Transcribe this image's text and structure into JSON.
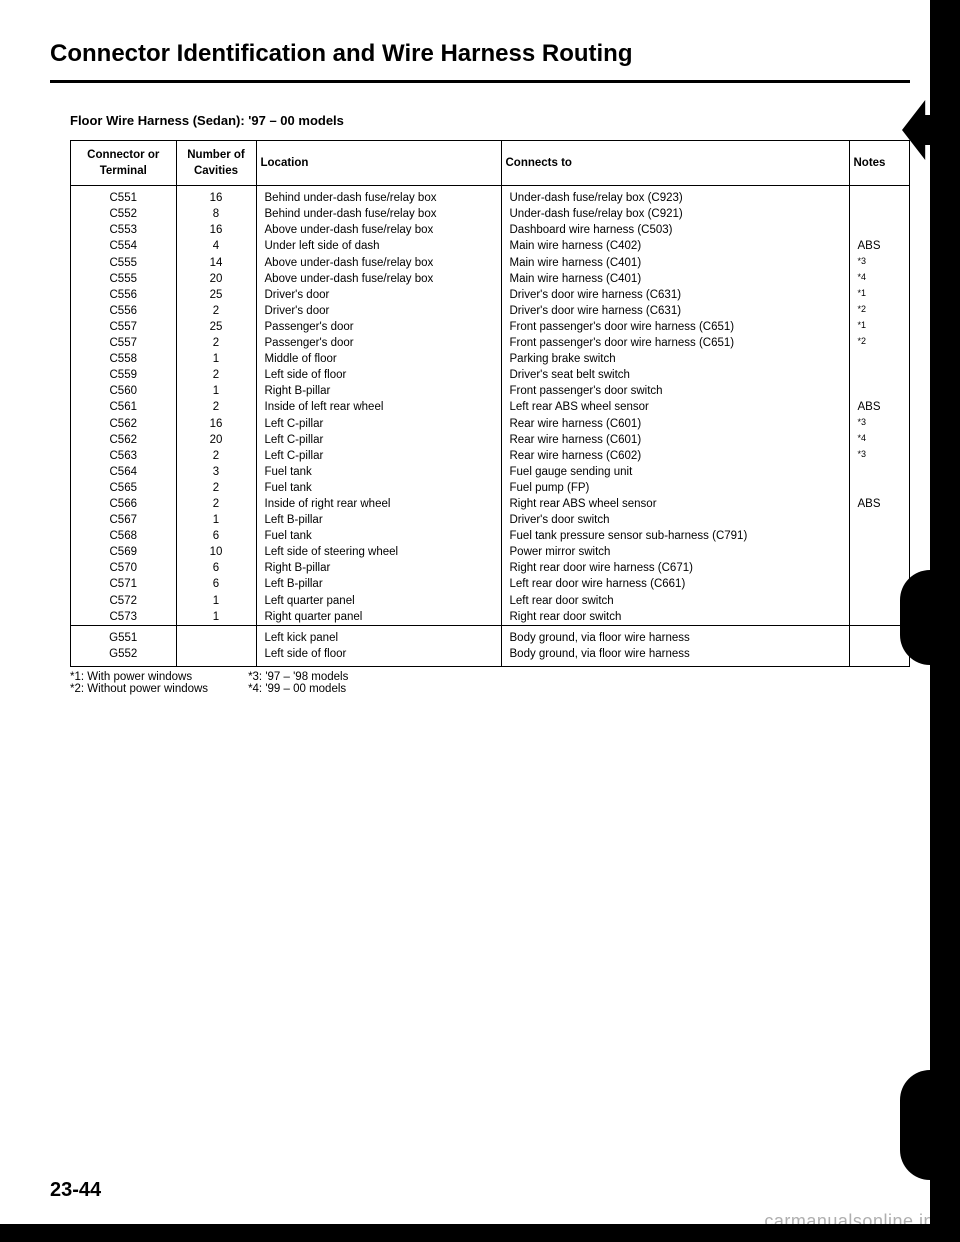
{
  "title": "Connector Identification and Wire Harness Routing",
  "subtitle": "Floor Wire Harness (Sedan): '97 – 00 models",
  "headers": {
    "terminal": "Connector or Terminal",
    "cavities": "Number of Cavities",
    "location": "Location",
    "connects": "Connects to",
    "notes": "Notes"
  },
  "rows_main": [
    {
      "t": "C551",
      "c": "16",
      "l": "Behind under-dash fuse/relay box",
      "x": "Under-dash fuse/relay box (C923)",
      "n": ""
    },
    {
      "t": "C552",
      "c": "8",
      "l": "Behind under-dash fuse/relay box",
      "x": "Under-dash fuse/relay box (C921)",
      "n": ""
    },
    {
      "t": "C553",
      "c": "16",
      "l": "Above under-dash fuse/relay box",
      "x": "Dashboard wire harness (C503)",
      "n": ""
    },
    {
      "t": "C554",
      "c": "4",
      "l": "Under left side of dash",
      "x": "Main wire harness (C402)",
      "n": "ABS"
    },
    {
      "t": "C555",
      "c": "14",
      "l": "Above under-dash fuse/relay box",
      "x": "Main wire harness (C401)",
      "n": "*3"
    },
    {
      "t": "C555",
      "c": "20",
      "l": "Above under-dash fuse/relay box",
      "x": "Main wire harness (C401)",
      "n": "*4"
    },
    {
      "t": "C556",
      "c": "25",
      "l": "Driver's door",
      "x": "Driver's door wire harness (C631)",
      "n": "*1"
    },
    {
      "t": "C556",
      "c": "2",
      "l": "Driver's door",
      "x": "Driver's door wire harness (C631)",
      "n": "*2"
    },
    {
      "t": "C557",
      "c": "25",
      "l": "Passenger's door",
      "x": "Front passenger's door wire harness (C651)",
      "n": "*1"
    },
    {
      "t": "C557",
      "c": "2",
      "l": "Passenger's door",
      "x": "Front passenger's door wire harness (C651)",
      "n": "*2"
    },
    {
      "t": "C558",
      "c": "1",
      "l": "Middle of floor",
      "x": "Parking brake switch",
      "n": ""
    },
    {
      "t": "C559",
      "c": "2",
      "l": "Left side of floor",
      "x": "Driver's seat belt switch",
      "n": ""
    },
    {
      "t": "C560",
      "c": "1",
      "l": "Right B-pillar",
      "x": "Front passenger's door switch",
      "n": ""
    },
    {
      "t": "C561",
      "c": "2",
      "l": "Inside of left rear wheel",
      "x": "Left rear ABS wheel sensor",
      "n": "ABS"
    },
    {
      "t": "C562",
      "c": "16",
      "l": "Left C-pillar",
      "x": "Rear wire harness (C601)",
      "n": "*3"
    },
    {
      "t": "C562",
      "c": "20",
      "l": "Left C-pillar",
      "x": "Rear wire harness (C601)",
      "n": "*4"
    },
    {
      "t": "C563",
      "c": "2",
      "l": "Left C-pillar",
      "x": "Rear wire harness (C602)",
      "n": "*3"
    },
    {
      "t": "C564",
      "c": "3",
      "l": "Fuel tank",
      "x": "Fuel gauge sending unit",
      "n": ""
    },
    {
      "t": "C565",
      "c": "2",
      "l": "Fuel tank",
      "x": "Fuel pump (FP)",
      "n": ""
    },
    {
      "t": "C566",
      "c": "2",
      "l": "Inside of right rear wheel",
      "x": "Right rear ABS wheel sensor",
      "n": "ABS"
    },
    {
      "t": "C567",
      "c": "1",
      "l": "Left B-pillar",
      "x": "Driver's door switch",
      "n": ""
    },
    {
      "t": "C568",
      "c": "6",
      "l": "Fuel tank",
      "x": "Fuel tank pressure sensor sub-harness (C791)",
      "n": ""
    },
    {
      "t": "C569",
      "c": "10",
      "l": "Left side of steering wheel",
      "x": "Power mirror switch",
      "n": ""
    },
    {
      "t": "C570",
      "c": "6",
      "l": "Right B-pillar",
      "x": "Right rear door wire harness (C671)",
      "n": ""
    },
    {
      "t": "C571",
      "c": "6",
      "l": "Left B-pillar",
      "x": "Left rear door wire harness (C661)",
      "n": ""
    },
    {
      "t": "C572",
      "c": "1",
      "l": "Left quarter panel",
      "x": "Left rear door switch",
      "n": ""
    },
    {
      "t": "C573",
      "c": "1",
      "l": "Right quarter panel",
      "x": "Right rear door switch",
      "n": ""
    }
  ],
  "rows_ground": [
    {
      "t": "G551",
      "c": "",
      "l": "Left kick panel",
      "x": "Body ground, via floor wire harness",
      "n": ""
    },
    {
      "t": "G552",
      "c": "",
      "l": "Left side of floor",
      "x": "Body ground, via floor wire harness",
      "n": ""
    }
  ],
  "footnotes": {
    "f1": "*1: With power windows",
    "f2": "*2: Without power windows",
    "f3": "*3: '97 – '98 models",
    "f4": "*4: '99 – 00 models"
  },
  "page_number": "23-44",
  "watermark": "carmanualsonline.info"
}
